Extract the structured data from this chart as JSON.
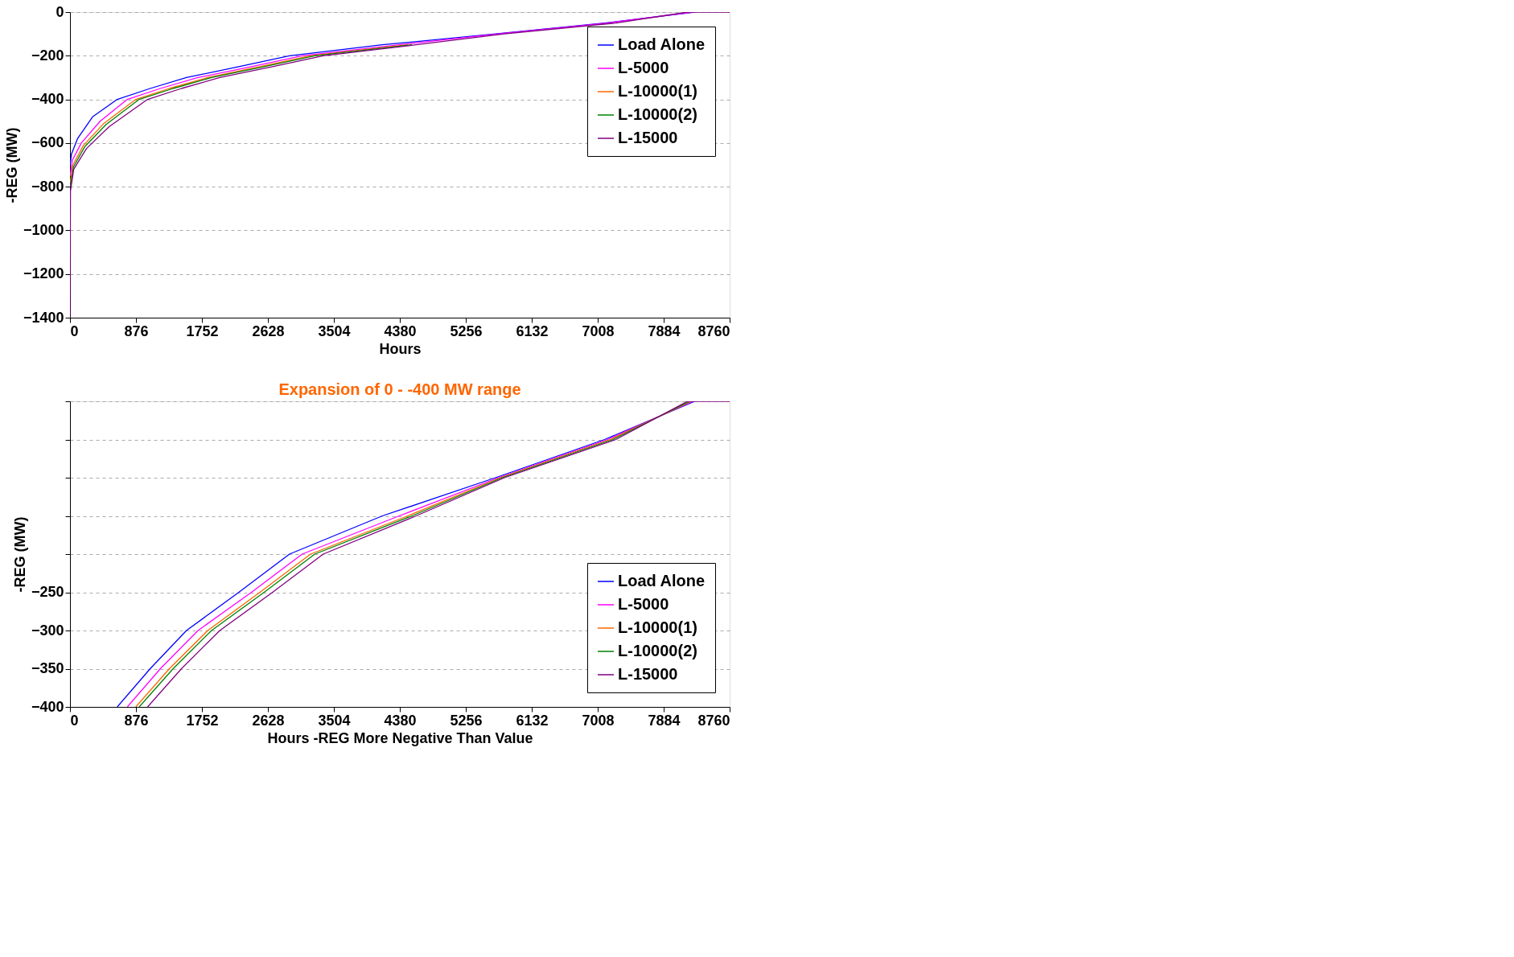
{
  "chart_data": [
    {
      "type": "line",
      "xlabel": "Hours",
      "ylabel": "-REG (MW)",
      "xlim": [
        0,
        8760
      ],
      "ylim": [
        -1400,
        0
      ],
      "xticks": [
        0,
        876,
        1752,
        2628,
        3504,
        4380,
        5256,
        6132,
        7008,
        7884,
        8760
      ],
      "yticks": [
        -1400,
        -1200,
        -1000,
        -800,
        -600,
        -400,
        -200,
        0
      ],
      "grid": "y",
      "legend": "top right",
      "series": [
        {
          "name": "Load Alone",
          "color": "#0000ff",
          "x": [
            2,
            20,
            100,
            300,
            628,
            1065,
            1547,
            2242,
            2915,
            4148,
            5650,
            7100,
            8296
          ],
          "values": [
            -700,
            -650,
            -580,
            -480,
            -400,
            -350,
            -300,
            -250,
            -200,
            -150,
            -100,
            -50,
            0
          ]
        },
        {
          "name": "L-5000",
          "color": "#ff00ff",
          "x": [
            3,
            30,
            150,
            400,
            762,
            1200,
            1700,
            2410,
            3083,
            4372,
            5690,
            7140,
            8270
          ],
          "values": [
            -750,
            -680,
            -600,
            -500,
            -400,
            -350,
            -300,
            -250,
            -200,
            -150,
            -100,
            -50,
            0
          ]
        },
        {
          "name": "L-10000(1)",
          "color": "#ff6600",
          "x": [
            4,
            40,
            180,
            450,
            874,
            1320,
            1830,
            2522,
            3195,
            4484
          ],
          "values": [
            -780,
            -700,
            -610,
            -510,
            -400,
            -350,
            -300,
            -250,
            -200,
            -150
          ]
        },
        {
          "name": "L-10000(2)",
          "color": "#008000",
          "x": [
            5,
            45,
            200,
            480,
            919,
            1370,
            1880,
            2578,
            3251,
            4541
          ],
          "values": [
            -800,
            -710,
            -615,
            -515,
            -400,
            -350,
            -300,
            -250,
            -200,
            -150
          ]
        },
        {
          "name": "L-15000",
          "color": "#800080",
          "x": [
            0,
            6,
            50,
            220,
            520,
            1031,
            1480,
            1990,
            2690,
            3363,
            4596,
            5770,
            7250,
            8200,
            8760
          ],
          "values": [
            -1400,
            -820,
            -720,
            -625,
            -525,
            -400,
            -350,
            -300,
            -250,
            -200,
            -150,
            -100,
            -50,
            0,
            0
          ]
        }
      ]
    },
    {
      "type": "line",
      "title": "Expansion of 0 - -400 MW range",
      "xlabel": "Hours -REG More Negative Than  Value",
      "ylabel": "-REG (MW)",
      "xlim": [
        0,
        8760
      ],
      "ylim": [
        -400,
        0
      ],
      "xticks": [
        0,
        876,
        1752,
        2628,
        3504,
        4380,
        5256,
        6132,
        7008,
        7884,
        8760
      ],
      "yticks": [
        -400,
        -350,
        -300,
        -250,
        {
          "value": -200,
          "label": null
        },
        {
          "value": -150,
          "label": null
        },
        {
          "value": -100,
          "label": null
        },
        {
          "value": -50,
          "label": null
        },
        {
          "value": 0,
          "label": null
        }
      ],
      "grid": "y",
      "legend": "bottom right",
      "series": [
        {
          "name": "Load Alone",
          "color": "#0000ff",
          "x": [
            628,
            1065,
            1547,
            2242,
            2915,
            4148,
            5650,
            7100,
            8296
          ],
          "values": [
            -400,
            -350,
            -300,
            -250,
            -200,
            -150,
            -100,
            -50,
            0
          ]
        },
        {
          "name": "L-5000",
          "color": "#ff00ff",
          "x": [
            762,
            1200,
            1700,
            2410,
            3083,
            4372,
            5690,
            7140,
            8270
          ],
          "values": [
            -400,
            -350,
            -300,
            -250,
            -200,
            -150,
            -100,
            -50,
            0
          ]
        },
        {
          "name": "L-10000(1)",
          "color": "#ff6600",
          "x": [
            874,
            1320,
            1830,
            2522,
            3195,
            4484,
            5717,
            7175,
            8250
          ],
          "values": [
            -400,
            -350,
            -300,
            -250,
            -200,
            -150,
            -100,
            -50,
            0
          ]
        },
        {
          "name": "L-10000(2)",
          "color": "#008000",
          "x": [
            919,
            1370,
            1880,
            2578,
            3251,
            4541,
            5740,
            7210,
            8230
          ],
          "values": [
            -400,
            -350,
            -300,
            -250,
            -200,
            -150,
            -100,
            -50,
            0
          ]
        },
        {
          "name": "L-15000",
          "color": "#800080",
          "x": [
            1031,
            1480,
            1990,
            2690,
            3363,
            4596,
            5770,
            7250,
            8200,
            8760
          ],
          "values": [
            -400,
            -350,
            -300,
            -250,
            -200,
            -150,
            -100,
            -50,
            0,
            0
          ]
        }
      ]
    }
  ]
}
